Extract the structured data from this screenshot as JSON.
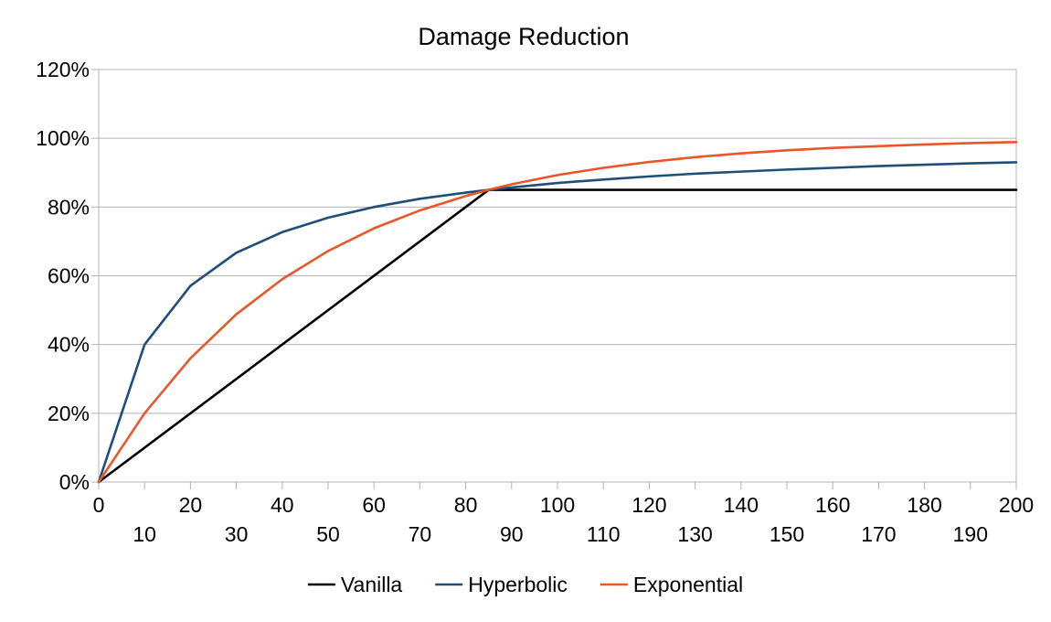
{
  "chart_data": {
    "type": "line",
    "title": "Damage Reduction",
    "xlabel": "",
    "ylabel": "",
    "xlim": [
      0,
      200
    ],
    "ylim": [
      0,
      120
    ],
    "x_ticks": [
      0,
      10,
      20,
      30,
      40,
      50,
      60,
      70,
      80,
      90,
      100,
      110,
      120,
      130,
      140,
      150,
      160,
      170,
      180,
      190,
      200
    ],
    "y_ticks": [
      0,
      20,
      40,
      60,
      80,
      100,
      120
    ],
    "y_tick_labels": [
      "0%",
      "20%",
      "40%",
      "60%",
      "80%",
      "100%",
      "120%"
    ],
    "grid": "horizontal",
    "legend_position": "bottom",
    "series": [
      {
        "name": "Vanilla",
        "color": "#000000",
        "x": [
          0,
          85,
          200
        ],
        "y": [
          0,
          85,
          85
        ]
      },
      {
        "name": "Hyperbolic",
        "color": "#1f4e79",
        "x": [
          0,
          10,
          20,
          30,
          40,
          50,
          60,
          70,
          80,
          85,
          90,
          100,
          110,
          120,
          130,
          140,
          150,
          160,
          170,
          180,
          190,
          200
        ],
        "y": [
          0,
          40,
          57.1,
          66.7,
          72.7,
          76.9,
          80,
          82.4,
          84.2,
          85,
          85.7,
          87,
          88,
          88.9,
          89.7,
          90.3,
          90.9,
          91.4,
          91.9,
          92.3,
          92.7,
          93
        ]
      },
      {
        "name": "Exponential",
        "color": "#e8562a",
        "x": [
          0,
          10,
          20,
          30,
          40,
          50,
          60,
          70,
          80,
          85,
          90,
          100,
          110,
          120,
          130,
          140,
          150,
          160,
          170,
          180,
          190,
          200
        ],
        "y": [
          0,
          20,
          36,
          48.8,
          59,
          67.2,
          73.8,
          79,
          83.2,
          85,
          86.6,
          89.3,
          91.4,
          93.1,
          94.5,
          95.6,
          96.5,
          97.2,
          97.7,
          98.2,
          98.6,
          98.9
        ]
      }
    ]
  }
}
